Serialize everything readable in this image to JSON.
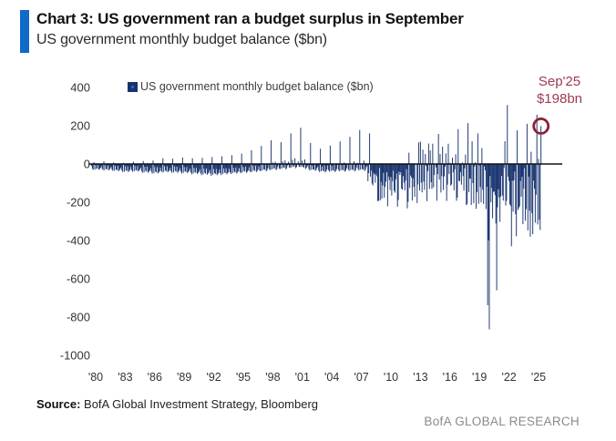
{
  "header": {
    "title": "Chart 3: US government ran a budget surplus in September",
    "subtitle": "US government monthly budget balance ($bn)"
  },
  "legend": {
    "label": "US government monthly budget balance ($bn)"
  },
  "annotation": {
    "line1": "Sep'25",
    "line2": "$198bn"
  },
  "footer": {
    "source_label": "Source:",
    "source_text": " BofA Global Investment Strategy, Bloomberg",
    "brand": "BofA GLOBAL RESEARCH"
  },
  "colors": {
    "accent": "#1169c8",
    "bar": "#17336e",
    "zero_line": "#111111",
    "annotation": "#9e3a52",
    "circle": "#8e2038",
    "brand_gray": "#8a8a8a"
  },
  "chart_data": {
    "type": "bar",
    "title": "US government monthly budget balance ($bn)",
    "frequency": "monthly",
    "x_start": "1980-01",
    "x_end": "2025-09",
    "ylim": [
      -1000,
      400
    ],
    "y_ticks": [
      400,
      200,
      0,
      -200,
      -400,
      -600,
      -800,
      -1000
    ],
    "x_tick_labels": [
      "'80",
      "'83",
      "'86",
      "'89",
      "'92",
      "'95",
      "'98",
      "'01",
      "'04",
      "'07",
      "'10",
      "'13",
      "'16",
      "'19",
      "'22",
      "'25"
    ],
    "grid": false,
    "legend_position": "top-left-inside",
    "highlight": {
      "label": "Sep'25",
      "value": 198
    },
    "values": [
      -10,
      -25,
      -30,
      10,
      -30,
      -6,
      -25,
      -24,
      -6,
      -30,
      -26,
      -20,
      -12,
      -26,
      -32,
      14,
      -32,
      -8,
      -26,
      -28,
      -8,
      -33,
      -28,
      -22,
      -15,
      -30,
      -36,
      8,
      -35,
      -10,
      -30,
      -32,
      -10,
      -38,
      -32,
      -26,
      -18,
      -34,
      -42,
      6,
      -40,
      -12,
      -34,
      -36,
      -12,
      -42,
      -36,
      -30,
      -16,
      -32,
      -40,
      12,
      -38,
      -10,
      -32,
      -34,
      -10,
      -40,
      -34,
      -28,
      -20,
      -37,
      -46,
      16,
      -44,
      -14,
      -36,
      -40,
      -14,
      -46,
      -40,
      -34,
      -22,
      -40,
      -50,
      18,
      -48,
      -16,
      -40,
      -44,
      -16,
      -50,
      -44,
      -38,
      -18,
      -36,
      -44,
      30,
      -42,
      -12,
      -34,
      -38,
      -12,
      -44,
      -38,
      -32,
      -20,
      -38,
      -46,
      28,
      -44,
      -14,
      -36,
      -40,
      -14,
      -46,
      -40,
      -34,
      -22,
      -40,
      -50,
      34,
      -46,
      -16,
      -38,
      -42,
      -16,
      -48,
      -42,
      -36,
      -25,
      -44,
      -54,
      30,
      -50,
      -20,
      -42,
      -46,
      -20,
      -52,
      -46,
      -40,
      -28,
      -48,
      -58,
      32,
      -54,
      -24,
      -46,
      -50,
      -24,
      -56,
      -50,
      -44,
      -30,
      -50,
      -62,
      36,
      -56,
      -26,
      -48,
      -52,
      -26,
      -58,
      -52,
      -46,
      -28,
      -48,
      -58,
      40,
      -52,
      -24,
      -44,
      -48,
      -22,
      -54,
      -48,
      -42,
      -25,
      -44,
      -52,
      46,
      -48,
      -20,
      -40,
      -44,
      -18,
      -50,
      -44,
      -38,
      -22,
      -42,
      -48,
      54,
      -44,
      -16,
      -36,
      -40,
      -14,
      -46,
      -40,
      -34,
      -18,
      -38,
      -44,
      72,
      -40,
      -10,
      -32,
      -36,
      -8,
      -42,
      -36,
      -28,
      -12,
      -34,
      -38,
      94,
      -34,
      -4,
      -28,
      -30,
      2,
      -38,
      -32,
      -22,
      -4,
      -28,
      -32,
      124,
      -28,
      8,
      -22,
      -24,
      12,
      -32,
      -26,
      -14,
      4,
      -24,
      -26,
      114,
      -24,
      14,
      -18,
      -20,
      20,
      -28,
      -22,
      -8,
      12,
      -18,
      -20,
      160,
      -18,
      22,
      -12,
      -14,
      30,
      -22,
      -16,
      2,
      14,
      -14,
      -16,
      190,
      -14,
      18,
      -16,
      -18,
      24,
      -26,
      -20,
      -12,
      -6,
      -26,
      -34,
      110,
      -30,
      -8,
      -28,
      -30,
      2,
      -36,
      -30,
      -20,
      -12,
      -34,
      -42,
      80,
      -38,
      -14,
      -34,
      -38,
      -6,
      -44,
      -38,
      -28,
      -8,
      -32,
      -40,
      96,
      -36,
      -10,
      -32,
      -36,
      -2,
      -42,
      -36,
      -26,
      -4,
      -30,
      -38,
      118,
      -34,
      -6,
      -30,
      -34,
      8,
      -40,
      -34,
      -22,
      2,
      -28,
      -36,
      142,
      -32,
      -2,
      -28,
      -32,
      14,
      -38,
      -32,
      -18,
      6,
      -26,
      -34,
      178,
      -30,
      2,
      -26,
      -30,
      18,
      -36,
      -30,
      -16,
      -8,
      -90,
      -48,
      160,
      -66,
      -34,
      -102,
      -112,
      -46,
      -56,
      -98,
      -52,
      -64,
      -194,
      -192,
      -21,
      -190,
      -94,
      -181,
      -112,
      -46,
      -176,
      -120,
      -92,
      -43,
      -221,
      -65,
      -83,
      -136,
      -68,
      -165,
      -90,
      -35,
      -140,
      -150,
      -80,
      -50,
      -223,
      -188,
      -40,
      -57,
      -43,
      -129,
      -134,
      -63,
      -98,
      -137,
      -86,
      -27,
      -232,
      -198,
      59,
      -125,
      -60,
      -70,
      -191,
      -75,
      -120,
      -172,
      -1,
      3,
      -204,
      -107,
      113,
      -139,
      117,
      -98,
      -148,
      75,
      -92,
      -135,
      53,
      -10,
      -194,
      -37,
      107,
      -130,
      71,
      -95,
      -130,
      106,
      -122,
      -57,
      2,
      -18,
      -192,
      -53,
      157,
      -82,
      52,
      -149,
      -64,
      91,
      -136,
      -65,
      -14,
      55,
      -193,
      -108,
      106,
      -52,
      6,
      -113,
      -107,
      33,
      -44,
      -137,
      -27,
      51,
      -192,
      -176,
      182,
      -88,
      -90,
      -43,
      -108,
      8,
      -63,
      -139,
      -23,
      49,
      -215,
      -209,
      214,
      -147,
      -75,
      -77,
      -214,
      119,
      -100,
      -205,
      -14,
      9,
      -234,
      -147,
      160,
      -208,
      -8,
      -120,
      -200,
      83,
      -134,
      -209,
      -13,
      -33,
      -235,
      -119,
      -738,
      -399,
      -864,
      -63,
      -200,
      -125,
      -284,
      -145,
      -144,
      -163,
      -311,
      -660,
      -226,
      -132,
      -174,
      -302,
      -171,
      -62,
      -165,
      -191,
      -21,
      119,
      -217,
      -193,
      308,
      -66,
      -89,
      -211,
      -220,
      -430,
      -88,
      -249,
      -85,
      -39,
      -262,
      -378,
      176,
      -240,
      -228,
      -221,
      -89,
      -171,
      -67,
      -314,
      -129,
      -22,
      -296,
      -236,
      210,
      -347,
      -66,
      -244,
      -380,
      64,
      -257,
      -367,
      -87,
      -129,
      -307,
      -161,
      258,
      -316,
      27,
      -291,
      -345,
      198
    ]
  }
}
